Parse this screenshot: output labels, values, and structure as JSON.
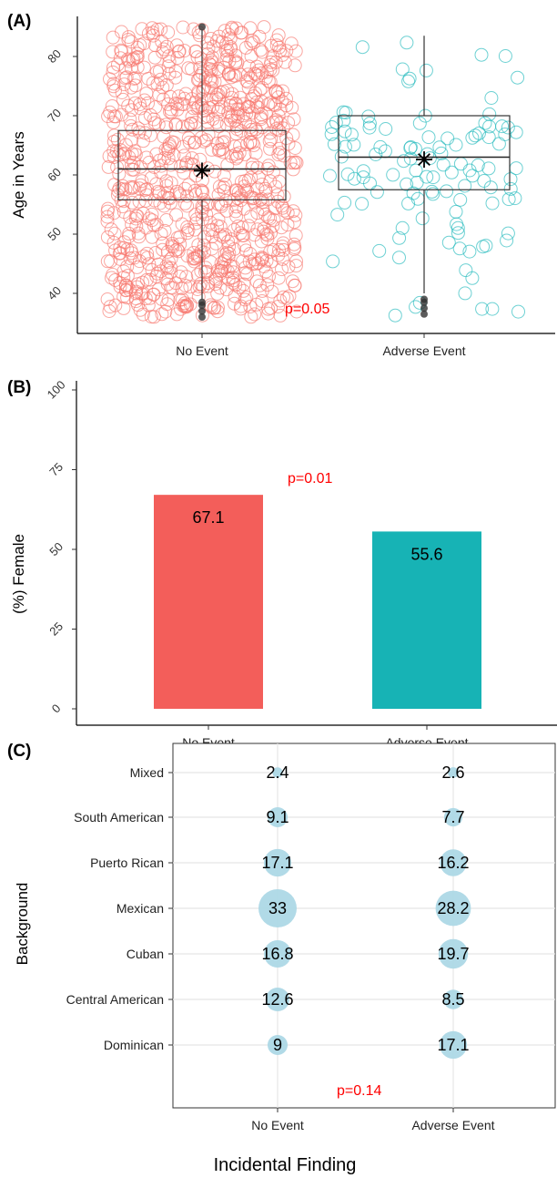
{
  "chart_data": [
    {
      "panel": "(A)",
      "type": "scatter",
      "subtype": "jittered points with boxplot",
      "ylabel": "Age in Years",
      "ylim": [
        35,
        86
      ],
      "yticks": [
        40,
        50,
        60,
        70,
        80
      ],
      "categories": [
        "No Event",
        "Adverse Event"
      ],
      "colors": [
        "#f8766d",
        "#1fb8bb"
      ],
      "boxes": [
        {
          "category": "No Event",
          "min": 39,
          "q1": 55.8,
          "median": 61,
          "q3": 67.5,
          "max": 84.5,
          "mean": 60.7,
          "outliers": [
            36,
            37,
            38,
            38.5,
            85
          ]
        },
        {
          "category": "Adverse Event",
          "min": 40,
          "q1": 57.5,
          "median": 63,
          "q3": 70,
          "max": 83.5,
          "mean": 62.6,
          "outliers": [
            36.5,
            37.5,
            38.5,
            39
          ]
        }
      ],
      "annotation": "p=0.05"
    },
    {
      "panel": "(B)",
      "type": "bar",
      "ylabel": "(%) Female",
      "ylim": [
        0,
        100
      ],
      "yticks": [
        0,
        25,
        50,
        75,
        100
      ],
      "categories": [
        "No Event",
        "Adverse Event"
      ],
      "values": [
        67.1,
        55.6
      ],
      "value_labels": [
        "67.1",
        "55.6"
      ],
      "colors": [
        "#f35e5a",
        "#17b3b5"
      ],
      "annotation": "p=0.01"
    },
    {
      "panel": "(C)",
      "type": "scatter",
      "subtype": "bubble",
      "xlabel": "Incidental Finding",
      "ylabel": "Background",
      "x_categories": [
        "No Event",
        "Adverse Event"
      ],
      "y_categories": [
        "Mixed",
        "South American",
        "Puerto Rican",
        "Mexican",
        "Cuban",
        "Central American",
        "Dominican"
      ],
      "series": [
        {
          "x": "No Event",
          "values": [
            2.4,
            9.1,
            17.1,
            33,
            16.8,
            12.6,
            9
          ],
          "labels": [
            "2.4",
            "9.1",
            "17.1",
            "33",
            "16.8",
            "12.6",
            "9"
          ]
        },
        {
          "x": "Adverse Event",
          "values": [
            2.6,
            7.7,
            16.2,
            28.2,
            19.7,
            8.5,
            17.1
          ],
          "labels": [
            "2.6",
            "7.7",
            "16.2",
            "28.2",
            "19.7",
            "8.5",
            "17.1"
          ]
        }
      ],
      "bubble_color": "#add8e6",
      "annotation": "p=0.14"
    }
  ]
}
